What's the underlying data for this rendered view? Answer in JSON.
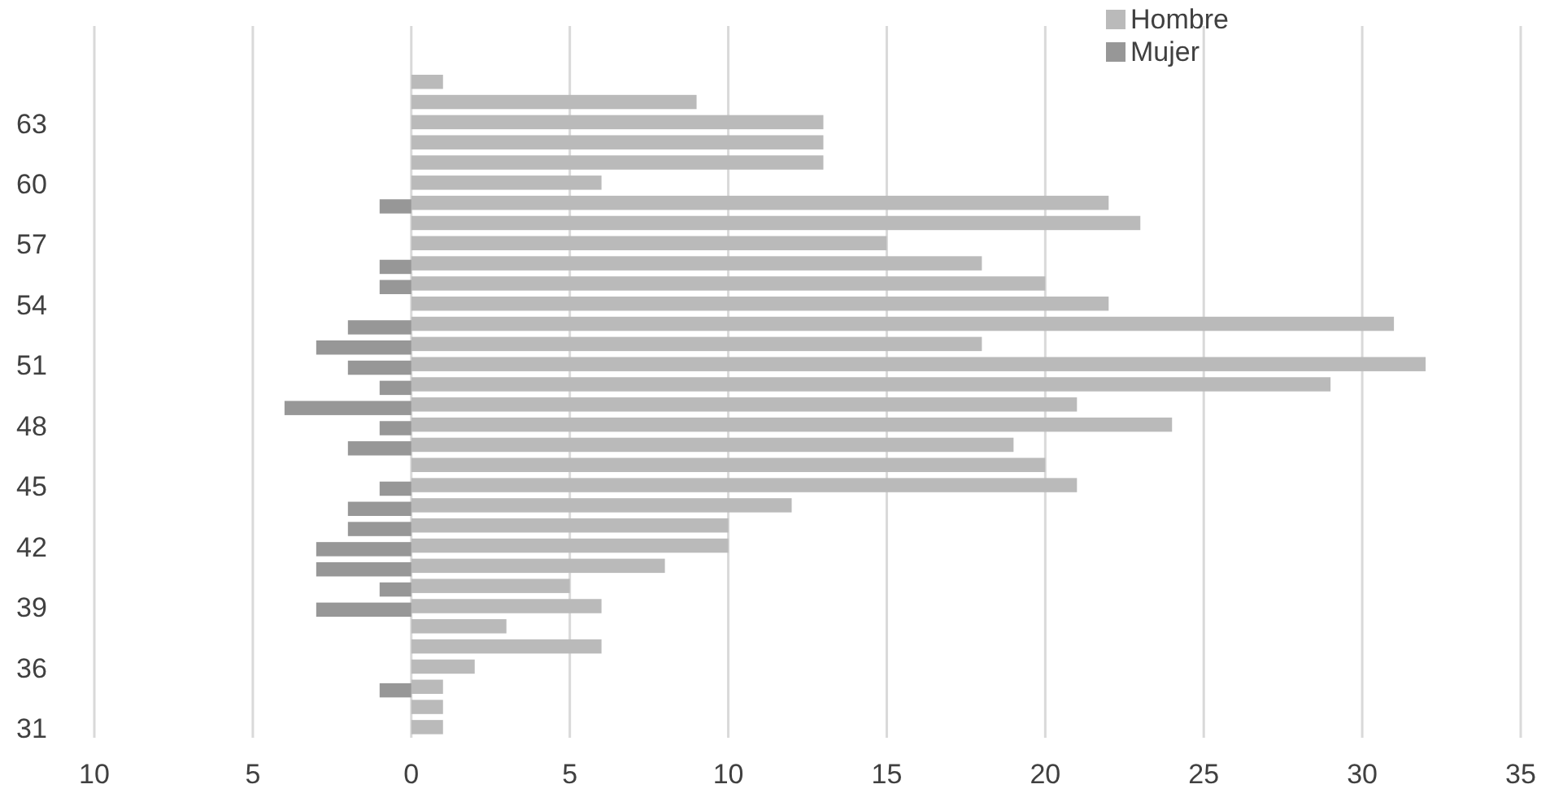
{
  "chart_data": {
    "type": "bar",
    "orientation": "horizontal",
    "categories": [
      null,
      null,
      "63",
      null,
      null,
      "60",
      null,
      null,
      "57",
      null,
      null,
      "54",
      null,
      null,
      "51",
      null,
      null,
      "48",
      null,
      null,
      "45",
      null,
      null,
      "42",
      null,
      null,
      "39",
      null,
      null,
      "36",
      null,
      null,
      "31"
    ],
    "series": [
      {
        "name": "Hombre",
        "color": "#bababa",
        "values": [
          1,
          9,
          13,
          13,
          13,
          6,
          22,
          23,
          15,
          18,
          20,
          22,
          31,
          18,
          32,
          29,
          21,
          24,
          19,
          20,
          21,
          12,
          10,
          10,
          8,
          5,
          6,
          3,
          6,
          2,
          1,
          1,
          1
        ]
      },
      {
        "name": "Mujer",
        "color": "#979797",
        "values": [
          null,
          null,
          null,
          null,
          null,
          null,
          -1,
          null,
          null,
          -1,
          -1,
          null,
          -2,
          -3,
          -2,
          -1,
          -4,
          -1,
          -2,
          null,
          -1,
          -2,
          -2,
          -3,
          -3,
          -1,
          -3,
          null,
          null,
          null,
          -1,
          null,
          null
        ]
      }
    ],
    "xlim": [
      -10,
      35
    ],
    "xticks": [
      {
        "value": -10,
        "label": "10"
      },
      {
        "value": -5,
        "label": "5"
      },
      0,
      5,
      10,
      15,
      20,
      25,
      30,
      35
    ],
    "grid": "x",
    "legend": "top right"
  }
}
